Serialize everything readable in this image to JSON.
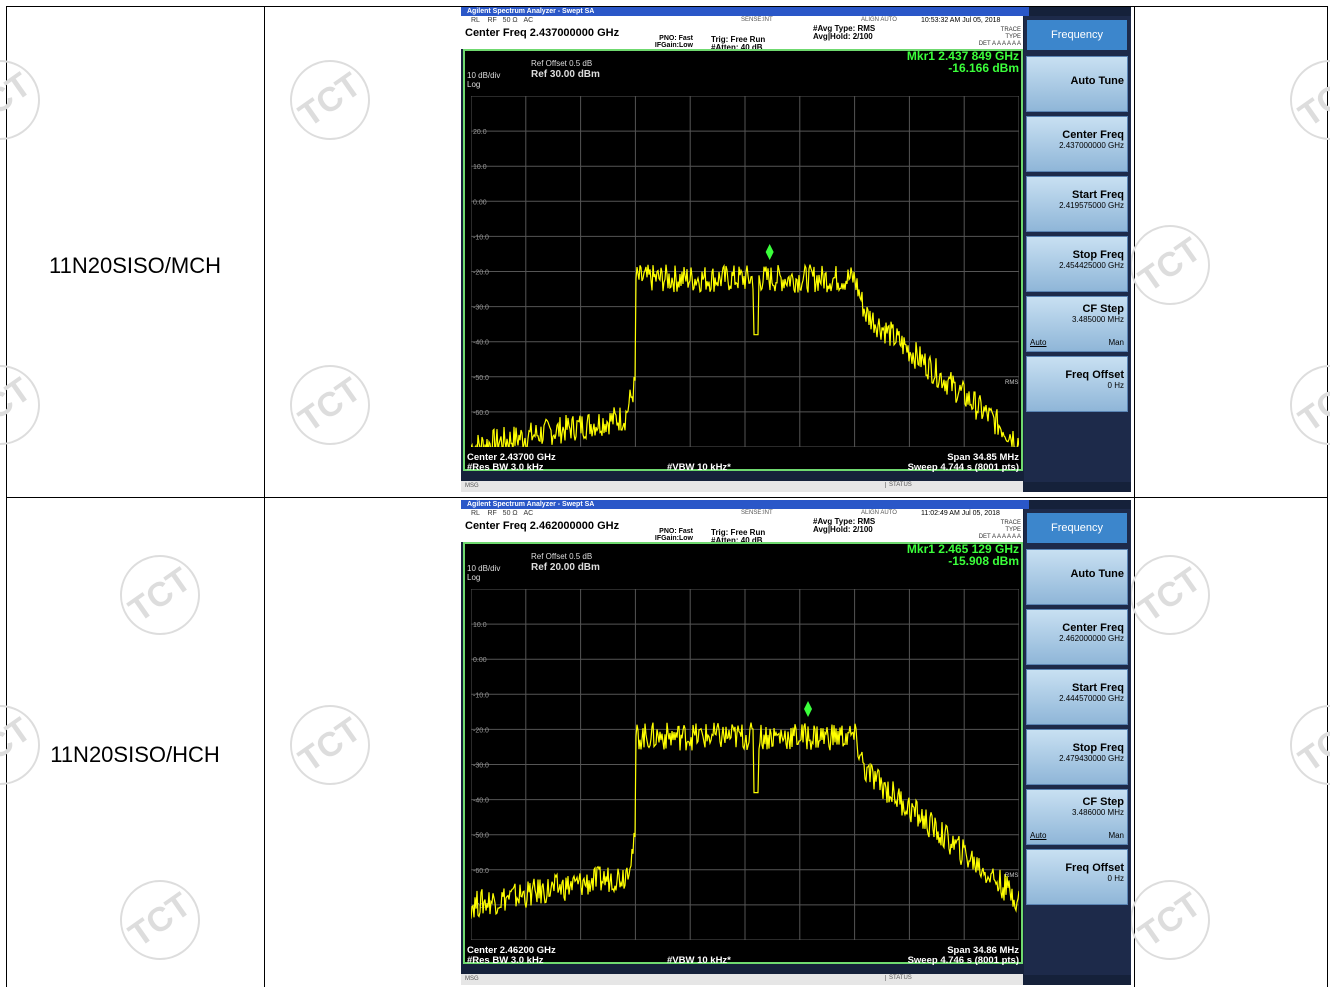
{
  "rows": [
    {
      "label": "11N20SISO/MCH",
      "analyzer": {
        "window_title": "Agilent Spectrum Analyzer - Swept SA",
        "top_bar": {
          "rl": "RL",
          "rf": "RF",
          "impedance": "50 Ω",
          "coupling": "AC",
          "sense": "SENSE:INT",
          "align": "ALIGN AUTO",
          "time": "10:53:32 AM Jul 05, 2018",
          "trace_label": "TRACE",
          "type_label": "TYPE",
          "det_label": "DET",
          "det_value": "A A A A A A"
        },
        "center_freq": "Center Freq 2.437000000 GHz",
        "pno": "PNO: Fast",
        "ifgain": "IFGain:Low",
        "trig": "Trig: Free Run",
        "atten": "#Atten: 40 dB",
        "avg_type": "#Avg Type: RMS",
        "avg_hold": "Avg|Hold: 2/100",
        "ref_offset": "Ref Offset 0.5 dB",
        "ref_level": "Ref 30.00 dBm",
        "scale": "10 dB/div",
        "scale_type": "Log",
        "marker_freq": "Mkr1 2.437 849 GHz",
        "marker_level": "-16.166 dBm",
        "center": "Center 2.43700 GHz",
        "res_bw": "#Res BW 3.0 kHz",
        "vbw": "#VBW 10 kHz*",
        "span": "Span 34.85 MHz",
        "sweep": "Sweep  4.744 s (8001 pts)",
        "msg": "MSG",
        "status": "STATUS",
        "y_ticks": [
          "20.0",
          "10.0",
          "0.00",
          "-10.0",
          "-20.0",
          "-30.0",
          "-40.0",
          "-50.0",
          "-60.0"
        ],
        "marker_ylevel": -16.166,
        "rms_label": "RMS",
        "softkeys": {
          "title": "Frequency",
          "auto_tune": "Auto Tune",
          "center_freq": {
            "label": "Center Freq",
            "value": "2.437000000 GHz"
          },
          "start_freq": {
            "label": "Start Freq",
            "value": "2.419575000 GHz"
          },
          "stop_freq": {
            "label": "Stop Freq",
            "value": "2.454425000 GHz"
          },
          "cf_step": {
            "label": "CF Step",
            "value": "3.485000 MHz",
            "auto": "Auto",
            "man": "Man"
          },
          "freq_offset": {
            "label": "Freq Offset",
            "value": "0 Hz"
          }
        }
      }
    },
    {
      "label": "11N20SISO/HCH",
      "analyzer": {
        "window_title": "Agilent Spectrum Analyzer - Swept SA",
        "top_bar": {
          "rl": "RL",
          "rf": "RF",
          "impedance": "50 Ω",
          "coupling": "AC",
          "sense": "SENSE:INT",
          "align": "ALIGN AUTO",
          "time": "11:02:49 AM Jul 05, 2018",
          "trace_label": "TRACE",
          "type_label": "TYPE",
          "det_label": "DET",
          "det_value": "A A A A A A"
        },
        "center_freq": "Center Freq 2.462000000 GHz",
        "pno": "PNO: Fast",
        "ifgain": "IFGain:Low",
        "trig": "Trig: Free Run",
        "atten": "#Atten: 40 dB",
        "avg_type": "#Avg Type: RMS",
        "avg_hold": "Avg|Hold: 2/100",
        "ref_offset": "Ref Offset 0.5 dB",
        "ref_level": "Ref 20.00 dBm",
        "scale": "10 dB/div",
        "scale_type": "Log",
        "marker_freq": "Mkr1 2.465 129 GHz",
        "marker_level": "-15.908 dBm",
        "center": "Center 2.46200 GHz",
        "res_bw": "#Res BW 3.0 kHz",
        "vbw": "#VBW 10 kHz*",
        "span": "Span 34.86 MHz",
        "sweep": "Sweep  4.746 s (8001 pts)",
        "msg": "MSG",
        "status": "STATUS",
        "y_ticks": [
          "10.0",
          "0.00",
          "-10.0",
          "-20.0",
          "-30.0",
          "-40.0",
          "-50.0",
          "-60.0",
          "-70.0"
        ],
        "marker_ylevel": -15.908,
        "rms_label": "RMS",
        "softkeys": {
          "title": "Frequency",
          "auto_tune": "Auto Tune",
          "center_freq": {
            "label": "Center Freq",
            "value": "2.462000000 GHz"
          },
          "start_freq": {
            "label": "Start Freq",
            "value": "2.444570000 GHz"
          },
          "stop_freq": {
            "label": "Stop Freq",
            "value": "2.479430000 GHz"
          },
          "cf_step": {
            "label": "CF Step",
            "value": "3.486000 MHz",
            "auto": "Auto",
            "man": "Man"
          },
          "freq_offset": {
            "label": "Freq Offset",
            "value": "0 Hz"
          }
        }
      }
    }
  ],
  "watermark_text": "TCT",
  "colors": {
    "trace": "#ffff00",
    "marker": "#3bff3b",
    "grid": "#555555",
    "screen_border": "#6fd96f",
    "softkey_title": "#3c86cc"
  }
}
